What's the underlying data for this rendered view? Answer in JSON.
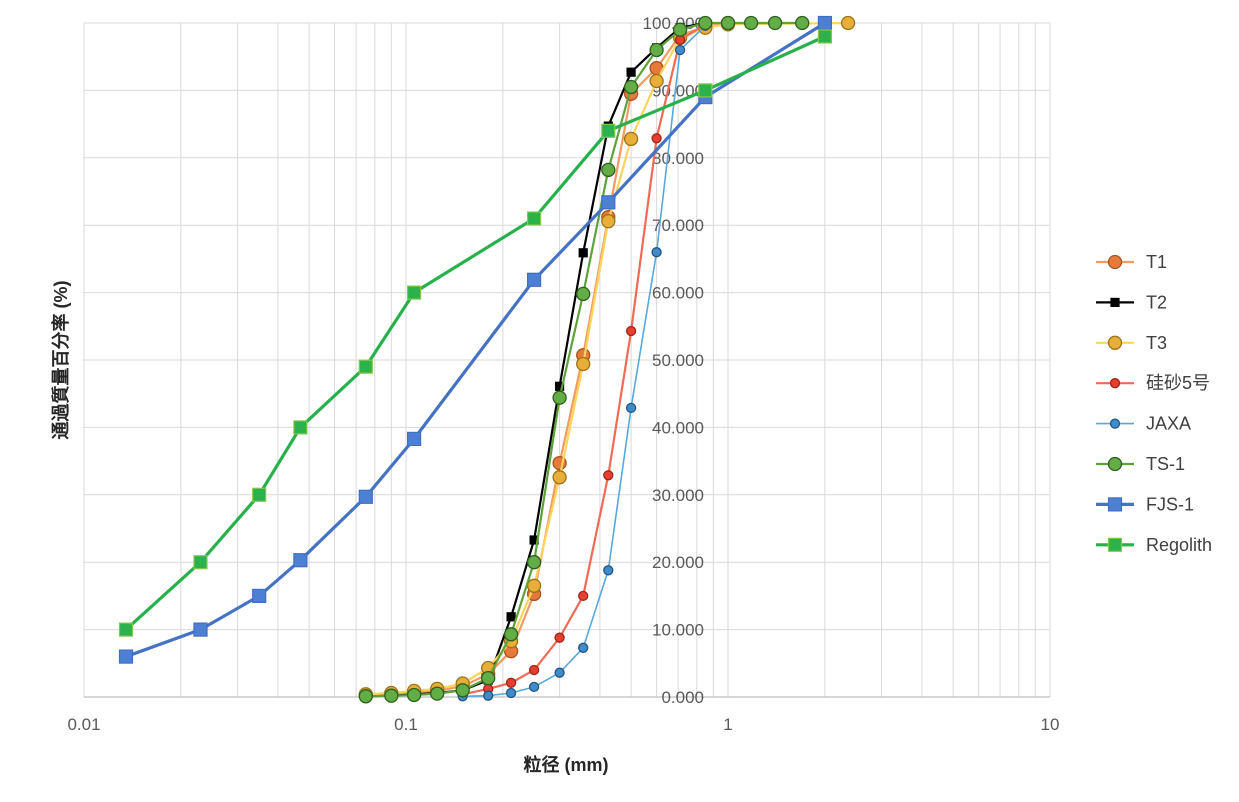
{
  "chart_data": {
    "type": "line",
    "xlabel": "粒径 (mm)",
    "ylabel": "通過質量百分率 (%)",
    "xscale": "log",
    "xlim": [
      0.01,
      10
    ],
    "ylim": [
      0,
      100
    ],
    "xticks": [
      0.01,
      0.1,
      1,
      10
    ],
    "xtick_labels": [
      "0.01",
      "0.1",
      "1",
      "10"
    ],
    "yticks": [
      0,
      10,
      20,
      30,
      40,
      50,
      60,
      70,
      80,
      90,
      100
    ],
    "ytick_labels": [
      "0.000",
      "10.000",
      "20.000",
      "30.000",
      "40.000",
      "50.000",
      "60.000",
      "70.000",
      "80.000",
      "90.000",
      "100.000"
    ],
    "grid": true,
    "minor_grid_x": true,
    "legend_position": "right",
    "series": [
      {
        "name": "T1",
        "marker": "circle",
        "color": "#F29A62",
        "marker_fill": "#E57A3A",
        "marker_edge": "#A8541F",
        "x": [
          0.075,
          0.09,
          0.106,
          0.125,
          0.15,
          0.18,
          0.212,
          0.25,
          0.3,
          0.355,
          0.425,
          0.5,
          0.6,
          0.71,
          0.85,
          1.0
        ],
        "y": [
          0.3,
          0.5,
          0.7,
          0.9,
          1.6,
          3.4,
          6.8,
          15.3,
          34.7,
          50.7,
          71.2,
          89.5,
          93.3,
          98.2,
          99.4,
          100
        ]
      },
      {
        "name": "T2",
        "marker": "square",
        "color": "#000000",
        "marker_fill": "#000000",
        "marker_edge": "#000000",
        "x": [
          0.075,
          0.09,
          0.106,
          0.125,
          0.15,
          0.18,
          0.212,
          0.25,
          0.3,
          0.355,
          0.425,
          0.5,
          0.6,
          0.71,
          0.85
        ],
        "y": [
          0.1,
          0.2,
          0.4,
          0.6,
          1.0,
          2.5,
          11.9,
          23.3,
          46.1,
          65.9,
          84.7,
          92.7,
          96.3,
          99.3,
          100
        ]
      },
      {
        "name": "T3",
        "marker": "circle",
        "color": "#FFD45C",
        "marker_fill": "#E8AE3A",
        "marker_edge": "#9A7316",
        "x": [
          0.075,
          0.09,
          0.106,
          0.125,
          0.15,
          0.18,
          0.212,
          0.25,
          0.3,
          0.355,
          0.425,
          0.5,
          0.6,
          0.71,
          0.85,
          1.0,
          2.36
        ],
        "y": [
          0.4,
          0.6,
          0.9,
          1.2,
          2.0,
          4.3,
          8.3,
          16.5,
          32.6,
          49.4,
          70.6,
          82.8,
          91.4,
          97.8,
          99.3,
          99.8,
          100
        ]
      },
      {
        "name": "硅砂5号",
        "marker": "circle",
        "color": "#F06A56",
        "marker_fill": "#E5402F",
        "marker_edge": "#A0251A",
        "x": [
          0.15,
          0.18,
          0.212,
          0.25,
          0.3,
          0.355,
          0.425,
          0.5,
          0.6,
          0.71,
          0.85
        ],
        "y": [
          0.4,
          1.2,
          2.1,
          4.0,
          8.8,
          15.0,
          32.9,
          54.3,
          82.9,
          97.5,
          99.8
        ]
      },
      {
        "name": "JAXA",
        "marker": "circle",
        "color": "#56A8DE",
        "marker_fill": "#3E8CCB",
        "marker_edge": "#23557F",
        "x": [
          0.15,
          0.18,
          0.212,
          0.25,
          0.3,
          0.355,
          0.425,
          0.5,
          0.6,
          0.71,
          0.85
        ],
        "y": [
          0.1,
          0.2,
          0.6,
          1.5,
          3.6,
          7.3,
          18.8,
          42.9,
          66.0,
          96.0,
          99.6
        ]
      },
      {
        "name": "TS-1",
        "marker": "circle",
        "color": "#5EA13A",
        "marker_fill": "#62AD45",
        "marker_edge": "#2F5F1F",
        "x": [
          0.075,
          0.09,
          0.106,
          0.125,
          0.15,
          0.18,
          0.212,
          0.25,
          0.3,
          0.355,
          0.425,
          0.5,
          0.6,
          0.71,
          0.85,
          1.0,
          1.18,
          1.4,
          1.7
        ],
        "y": [
          0.1,
          0.2,
          0.3,
          0.5,
          1.0,
          2.8,
          9.3,
          20.0,
          44.4,
          59.8,
          78.2,
          90.5,
          96.0,
          99.0,
          100,
          100,
          100,
          100,
          100
        ]
      },
      {
        "name": "FJS-1",
        "marker": "square",
        "color": "#4472C4",
        "marker_fill": "#4D7FD3",
        "marker_edge": "#3F6FC3",
        "x": [
          0.0135,
          0.023,
          0.035,
          0.047,
          0.075,
          0.106,
          0.25,
          0.425,
          0.85,
          2.0
        ],
        "y": [
          6.0,
          10.0,
          15.0,
          20.3,
          29.7,
          38.3,
          61.9,
          73.4,
          89.0,
          100
        ]
      },
      {
        "name": "Regolith",
        "marker": "square",
        "color": "#26B14B",
        "marker_fill": "#2BB24C",
        "marker_edge": "#86C84E",
        "x": [
          0.0135,
          0.023,
          0.035,
          0.047,
          0.075,
          0.106,
          0.25,
          0.425,
          0.85,
          2.0
        ],
        "y": [
          10.0,
          20.0,
          30.0,
          40.0,
          49.0,
          60.0,
          71.0,
          84.0,
          90.0,
          98.0
        ]
      }
    ]
  }
}
